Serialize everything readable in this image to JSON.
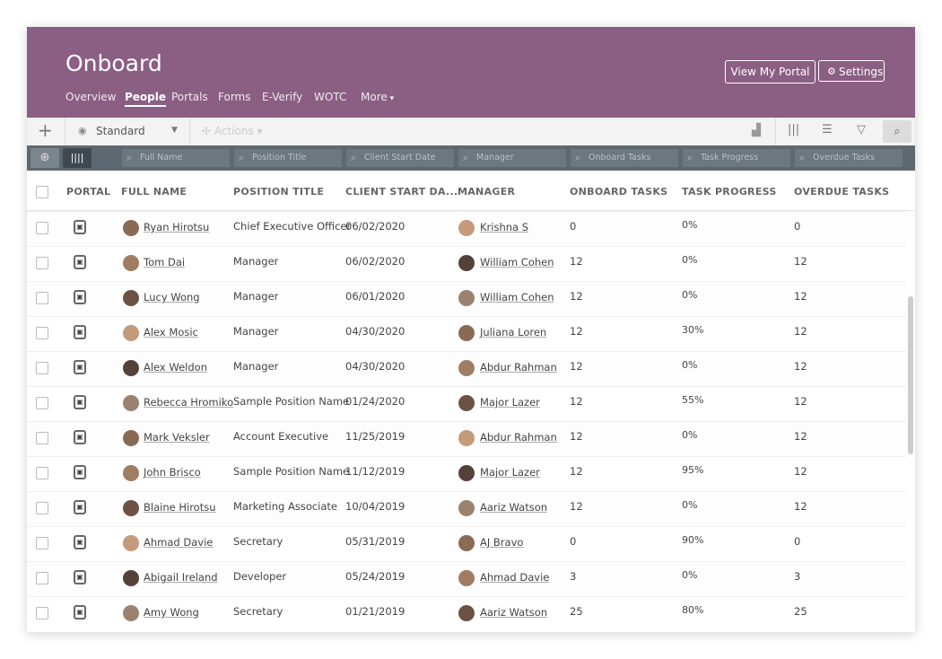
{
  "header": {
    "title": "Onboard",
    "nav": [
      "Overview",
      "People",
      "Portals",
      "Forms",
      "E-Verify",
      "WOTC",
      "More"
    ],
    "buttons": [
      "View My Portal",
      "Settings"
    ]
  },
  "toolbar": {
    "view": "Standard",
    "actions": "Actions"
  },
  "filters": [
    "Full Name",
    "Position Title",
    "Client Start Date",
    "Manager",
    "Onboard Tasks",
    "Task Progress",
    "Overdue Tasks"
  ],
  "table": {
    "columns": [
      "PORTAL",
      "FULL NAME",
      "POSITION TITLE",
      "CLIENT START DA...",
      "MANAGER",
      "ONBOARD TASKS",
      "TASK PROGRESS",
      "OVERDUE TASKS"
    ],
    "rows": [
      [
        "Ryan Hirotsu",
        "Chief Executive Officer",
        "06/02/2020",
        "Krishna S",
        "0",
        "0%",
        "0"
      ],
      [
        "Tom Dai",
        "Manager",
        "06/02/2020",
        "William Cohen",
        "12",
        "0%",
        "12"
      ],
      [
        "Lucy Wong",
        "Manager",
        "06/01/2020",
        "William Cohen",
        "12",
        "0%",
        "12"
      ],
      [
        "Alex Mosic",
        "Manager",
        "04/30/2020",
        "Juliana Loren",
        "12",
        "30%",
        "12"
      ],
      [
        "Alex Weldon",
        "Manager",
        "04/30/2020",
        "Abdur Rahman",
        "12",
        "0%",
        "12"
      ],
      [
        "Rebecca Hromiko",
        "Sample Position Name",
        "01/24/2020",
        "Major Lazer",
        "12",
        "55%",
        "12"
      ],
      [
        "Mark Veksler",
        "Account Executive",
        "11/25/2019",
        "Abdur Rahman",
        "12",
        "0%",
        "12"
      ],
      [
        "John Brisco",
        "Sample Position Name",
        "11/12/2019",
        "Major Lazer",
        "12",
        "95%",
        "12"
      ],
      [
        "Blaine Hirotsu",
        "Marketing Associate",
        "10/04/2019",
        "Aariz Watson",
        "12",
        "0%",
        "12"
      ],
      [
        "Ahmad Davie",
        "Secretary",
        "05/31/2019",
        "AJ Bravo",
        "0",
        "90%",
        "0"
      ],
      [
        "Abigail Ireland",
        "Developer",
        "05/24/2019",
        "Ahmad Davie",
        "3",
        "0%",
        "3"
      ],
      [
        "Amy Wong",
        "Secretary",
        "01/21/2019",
        "Aariz Watson",
        "25",
        "80%",
        "25"
      ]
    ]
  }
}
